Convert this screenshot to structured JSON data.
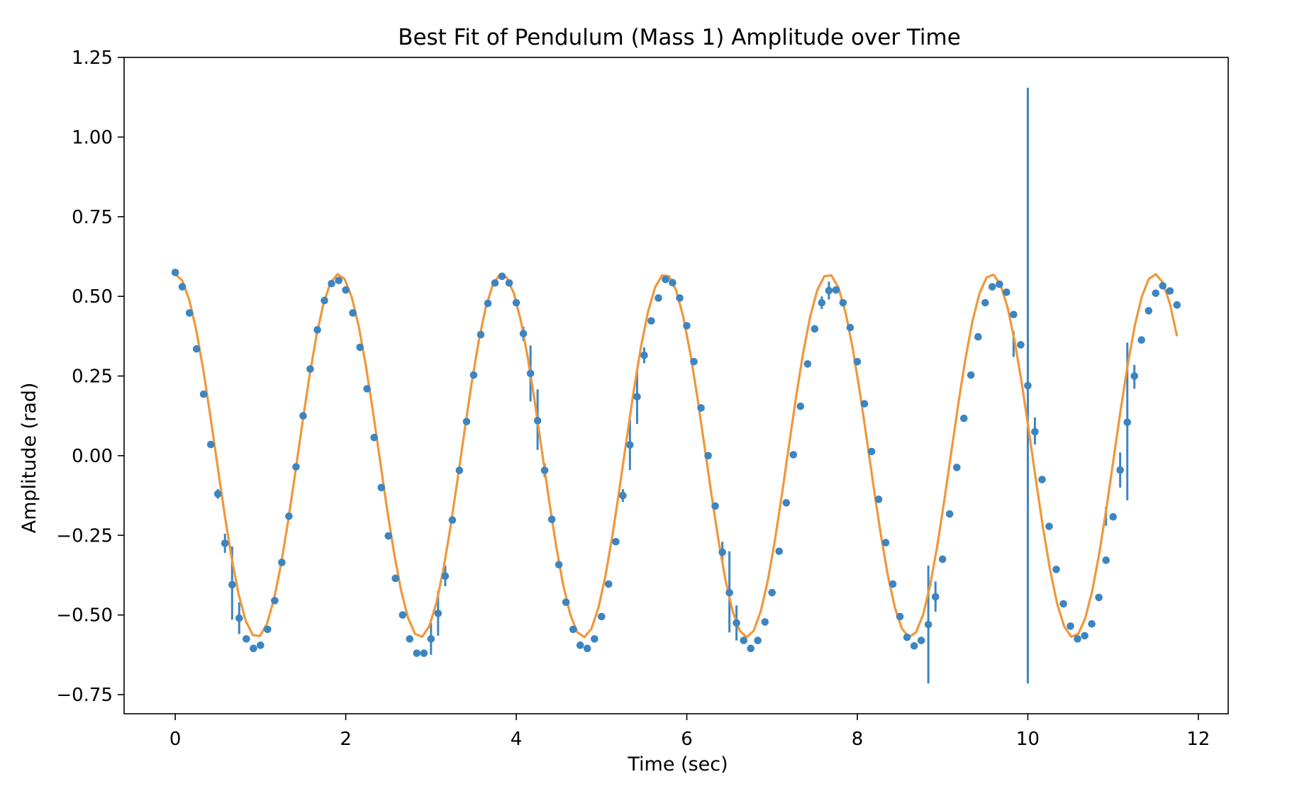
{
  "chart_data": {
    "type": "scatter",
    "title": "Best Fit of Pendulum (Mass 1) Amplitude over Time",
    "xlabel": "Time (sec)",
    "ylabel": "Amplitude (rad)",
    "xlim": [
      -0.6,
      12.35
    ],
    "ylim": [
      -0.81,
      1.25
    ],
    "xticks": [
      0,
      2,
      4,
      6,
      8,
      10,
      12
    ],
    "xtick_labels": [
      "0",
      "2",
      "4",
      "6",
      "8",
      "10",
      "12"
    ],
    "yticks": [
      1.25,
      1.0,
      0.75,
      0.5,
      0.25,
      0.0,
      -0.25,
      -0.5,
      -0.75
    ],
    "ytick_labels": [
      "1.25",
      "1.00",
      "0.75",
      "0.50",
      "0.25",
      "0.00",
      "−0.25",
      "−0.50",
      "−0.75"
    ],
    "grid": false,
    "legend": "none",
    "colors": {
      "data": "#3d85c0",
      "fit": "#f0973a",
      "axes": "#000000"
    },
    "series": [
      {
        "kind": "errorbar",
        "x": [
          0.0,
          0.083,
          0.167,
          0.25,
          0.333,
          0.417,
          0.5,
          0.583,
          0.667,
          0.75,
          0.833,
          0.917,
          1.0,
          1.083,
          1.167,
          1.25,
          1.333,
          1.417,
          1.5,
          1.583,
          1.667,
          1.75,
          1.833,
          1.917,
          2.0,
          2.083,
          2.167,
          2.25,
          2.333,
          2.417,
          2.5,
          2.583,
          2.667,
          2.75,
          2.833,
          2.917,
          3.0,
          3.083,
          3.167,
          3.25,
          3.333,
          3.417,
          3.5,
          3.583,
          3.667,
          3.75,
          3.833,
          3.917,
          4.0,
          4.083,
          4.167,
          4.25,
          4.333,
          4.417,
          4.5,
          4.583,
          4.667,
          4.75,
          4.833,
          4.917,
          5.0,
          5.083,
          5.167,
          5.25,
          5.333,
          5.417,
          5.5,
          5.583,
          5.667,
          5.75,
          5.833,
          5.917,
          6.0,
          6.083,
          6.167,
          6.25,
          6.333,
          6.417,
          6.5,
          6.583,
          6.667,
          6.75,
          6.833,
          6.917,
          7.0,
          7.083,
          7.167,
          7.25,
          7.333,
          7.417,
          7.5,
          7.583,
          7.667,
          7.75,
          7.833,
          7.917,
          8.0,
          8.083,
          8.167,
          8.25,
          8.333,
          8.417,
          8.5,
          8.583,
          8.667,
          8.75,
          8.833,
          8.917,
          9.0,
          9.083,
          9.167,
          9.25,
          9.333,
          9.417,
          9.5,
          9.583,
          9.667,
          9.75,
          9.833,
          9.917,
          10.0,
          10.083,
          10.167,
          10.25,
          10.333,
          10.417,
          10.5,
          10.583,
          10.667,
          10.75,
          10.833,
          10.917,
          11.0,
          11.083,
          11.167,
          11.25,
          11.333,
          11.417,
          11.5,
          11.583,
          11.667,
          11.75
        ],
        "y": [
          0.575,
          0.53,
          0.448,
          0.335,
          0.193,
          0.035,
          -0.12,
          -0.275,
          -0.405,
          -0.51,
          -0.575,
          -0.605,
          -0.595,
          -0.545,
          -0.455,
          -0.335,
          -0.19,
          -0.035,
          0.125,
          0.272,
          0.395,
          0.487,
          0.54,
          0.55,
          0.52,
          0.448,
          0.34,
          0.21,
          0.057,
          -0.1,
          -0.252,
          -0.385,
          -0.5,
          -0.575,
          -0.62,
          -0.62,
          -0.575,
          -0.495,
          -0.378,
          -0.202,
          -0.046,
          0.107,
          0.253,
          0.38,
          0.478,
          0.542,
          0.563,
          0.542,
          0.48,
          0.383,
          0.258,
          0.11,
          -0.046,
          -0.2,
          -0.342,
          -0.46,
          -0.545,
          -0.595,
          -0.605,
          -0.575,
          -0.505,
          -0.403,
          -0.27,
          -0.125,
          0.034,
          0.185,
          0.315,
          0.423,
          0.495,
          0.553,
          0.543,
          0.495,
          0.408,
          0.295,
          0.15,
          0.0,
          -0.158,
          -0.303,
          -0.43,
          -0.525,
          -0.58,
          -0.605,
          -0.58,
          -0.522,
          -0.43,
          -0.3,
          -0.148,
          0.003,
          0.155,
          0.288,
          0.398,
          0.48,
          0.518,
          0.52,
          0.48,
          0.402,
          0.295,
          0.163,
          0.013,
          -0.137,
          -0.273,
          -0.403,
          -0.505,
          -0.57,
          -0.597,
          -0.58,
          -0.53,
          -0.443,
          -0.325,
          -0.183,
          -0.037,
          0.117,
          0.253,
          0.373,
          0.48,
          0.53,
          0.538,
          0.513,
          0.443,
          0.348,
          0.22,
          0.075,
          -0.075,
          -0.222,
          -0.357,
          -0.465,
          -0.535,
          -0.575,
          -0.565,
          -0.528,
          -0.445,
          -0.328,
          -0.192,
          -0.045,
          0.105,
          0.25,
          0.363,
          0.455,
          0.51,
          0.533,
          0.517,
          0.473
        ],
        "error_bars": [
          {
            "x": 0.5,
            "low": -0.135,
            "high": -0.105
          },
          {
            "x": 0.583,
            "low": -0.305,
            "high": -0.245
          },
          {
            "x": 0.667,
            "low": -0.515,
            "high": -0.285
          },
          {
            "x": 0.75,
            "low": -0.56,
            "high": -0.46
          },
          {
            "x": 2.917,
            "low": -0.63,
            "high": -0.61
          },
          {
            "x": 3.0,
            "low": -0.625,
            "high": -0.525
          },
          {
            "x": 3.083,
            "low": -0.565,
            "high": -0.425
          },
          {
            "x": 3.167,
            "low": -0.41,
            "high": -0.345
          },
          {
            "x": 4.083,
            "low": 0.36,
            "high": 0.405
          },
          {
            "x": 4.167,
            "low": 0.17,
            "high": 0.346
          },
          {
            "x": 4.25,
            "low": 0.018,
            "high": 0.208
          },
          {
            "x": 4.333,
            "low": -0.068,
            "high": -0.024
          },
          {
            "x": 5.25,
            "low": -0.145,
            "high": -0.105
          },
          {
            "x": 5.333,
            "low": -0.045,
            "high": 0.113
          },
          {
            "x": 5.417,
            "low": 0.1,
            "high": 0.27
          },
          {
            "x": 5.5,
            "low": 0.29,
            "high": 0.34
          },
          {
            "x": 6.417,
            "low": -0.335,
            "high": -0.27
          },
          {
            "x": 6.5,
            "low": -0.555,
            "high": -0.3
          },
          {
            "x": 6.583,
            "low": -0.58,
            "high": -0.47
          },
          {
            "x": 7.583,
            "low": 0.46,
            "high": 0.5
          },
          {
            "x": 7.667,
            "low": 0.49,
            "high": 0.546
          },
          {
            "x": 8.833,
            "low": -0.715,
            "high": -0.345
          },
          {
            "x": 8.917,
            "low": -0.49,
            "high": -0.395
          },
          {
            "x": 9.833,
            "low": 0.31,
            "high": 0.39
          },
          {
            "x": 10.0,
            "low": -0.715,
            "high": 1.155
          },
          {
            "x": 10.083,
            "low": 0.035,
            "high": 0.12
          },
          {
            "x": 10.917,
            "low": -0.22,
            "high": -0.16
          },
          {
            "x": 11.083,
            "low": -0.1,
            "high": 0.01
          },
          {
            "x": 11.167,
            "low": -0.14,
            "high": 0.355
          },
          {
            "x": 11.25,
            "low": 0.21,
            "high": 0.285
          }
        ]
      },
      {
        "kind": "line",
        "amplitude": 0.57,
        "period": 1.915,
        "phase": 0.0,
        "x_range": [
          0.0,
          11.75
        ]
      }
    ]
  }
}
